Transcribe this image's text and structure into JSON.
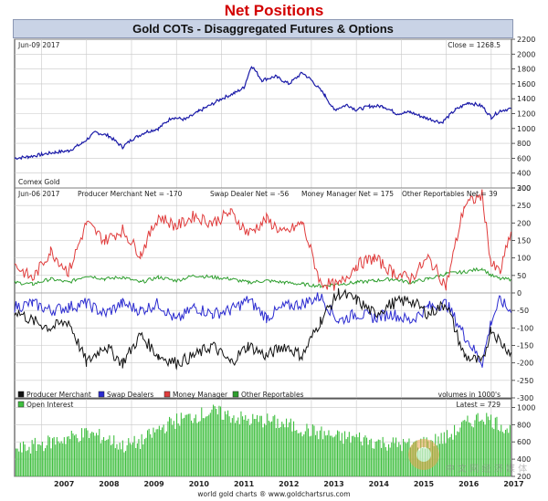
{
  "header": {
    "title": "Net Positions",
    "subtitle": "Gold COTs - Disaggregated Futures & Options"
  },
  "footer": {
    "credit": "world gold charts ® www.goldchartsrus.com"
  },
  "watermark": {
    "text": "中 文 网  经 济 媒 体"
  },
  "colors": {
    "price": "#1a1aa8",
    "producer": "#111111",
    "swap": "#2b2bd0",
    "money_manager": "#e03c3c",
    "other": "#2e9e2e",
    "open_interest": "#3fbf3f",
    "grid": "#c8c8c8"
  },
  "chart_data": [
    {
      "type": "line",
      "panel": "price",
      "date_label": "Jun-09  2017",
      "latest_label": "Close = 1268.5",
      "series_label": "Comex Gold",
      "ylim": [
        200,
        2200
      ],
      "yticks": [
        200,
        400,
        600,
        800,
        1000,
        1200,
        1400,
        1600,
        1800,
        2000,
        2200
      ],
      "grid": true,
      "series": [
        {
          "name": "Comex Gold",
          "color_key": "price",
          "x": [
            2006.4,
            2006.7,
            2007.0,
            2007.3,
            2007.6,
            2007.9,
            2008.2,
            2008.5,
            2008.8,
            2009.0,
            2009.3,
            2009.6,
            2009.9,
            2010.2,
            2010.5,
            2010.8,
            2011.0,
            2011.3,
            2011.5,
            2011.67,
            2011.9,
            2012.2,
            2012.5,
            2012.8,
            2013.0,
            2013.3,
            2013.5,
            2013.8,
            2014.0,
            2014.3,
            2014.6,
            2014.9,
            2015.2,
            2015.5,
            2015.9,
            2016.2,
            2016.5,
            2016.8,
            2017.0,
            2017.2,
            2017.44
          ],
          "y": [
            600,
            620,
            650,
            680,
            700,
            800,
            950,
            900,
            750,
            850,
            950,
            1000,
            1150,
            1120,
            1230,
            1330,
            1400,
            1480,
            1550,
            1850,
            1650,
            1700,
            1600,
            1750,
            1650,
            1450,
            1250,
            1320,
            1250,
            1300,
            1300,
            1200,
            1220,
            1150,
            1080,
            1250,
            1350,
            1300,
            1150,
            1240,
            1268
          ]
        }
      ]
    },
    {
      "type": "line",
      "panel": "net-positions",
      "date_label": "Jun-06  2017",
      "labels": {
        "producer": "Producer Merchant Net = -170",
        "swap": "Swap Dealer Net = -56",
        "money": "Money Manager Net = 175",
        "other": "Other Reportables Net = 39"
      },
      "legend": [
        "Producer Merchant",
        "Swap Dealers",
        "Money Manager",
        "Other Reportables"
      ],
      "units_label": "volumes in 1000's",
      "ylim": [
        -300,
        300
      ],
      "yticks": [
        -300,
        -250,
        -200,
        -150,
        -100,
        -50,
        0,
        50,
        100,
        150,
        200,
        250,
        300
      ],
      "grid": true,
      "series": [
        {
          "name": "Producer Merchant",
          "color_key": "producer",
          "x": [
            2006.4,
            2006.8,
            2007.2,
            2007.6,
            2008.0,
            2008.4,
            2008.8,
            2009.2,
            2009.6,
            2010.0,
            2010.4,
            2010.8,
            2011.2,
            2011.6,
            2012.0,
            2012.4,
            2012.8,
            2013.2,
            2013.6,
            2014.0,
            2014.4,
            2014.8,
            2015.2,
            2015.6,
            2016.0,
            2016.4,
            2016.8,
            2017.0,
            2017.2,
            2017.44
          ],
          "y": [
            -50,
            -80,
            -100,
            -80,
            -200,
            -150,
            -200,
            -120,
            -180,
            -200,
            -180,
            -150,
            -200,
            -150,
            -180,
            -150,
            -180,
            -80,
            0,
            -20,
            -60,
            -30,
            -20,
            -60,
            -30,
            -180,
            -200,
            -100,
            -140,
            -170
          ]
        },
        {
          "name": "Swap Dealers",
          "color_key": "swap",
          "x": [
            2006.4,
            2006.8,
            2007.2,
            2007.6,
            2008.0,
            2008.4,
            2008.8,
            2009.2,
            2009.6,
            2010.0,
            2010.4,
            2010.8,
            2011.2,
            2011.6,
            2012.0,
            2012.4,
            2012.8,
            2013.2,
            2013.6,
            2014.0,
            2014.4,
            2014.8,
            2015.2,
            2015.6,
            2016.0,
            2016.4,
            2016.8,
            2017.0,
            2017.2,
            2017.44
          ],
          "y": [
            -40,
            -30,
            -50,
            -40,
            -30,
            -60,
            -30,
            -50,
            -30,
            -80,
            -40,
            -60,
            -50,
            -20,
            -70,
            -40,
            -30,
            -10,
            -80,
            -60,
            -70,
            -60,
            -80,
            -40,
            -30,
            -120,
            -200,
            -80,
            -20,
            -56
          ]
        },
        {
          "name": "Money Manager",
          "color_key": "money_manager",
          "x": [
            2006.4,
            2006.8,
            2007.2,
            2007.6,
            2008.0,
            2008.4,
            2008.8,
            2009.2,
            2009.6,
            2010.0,
            2010.4,
            2010.8,
            2011.2,
            2011.6,
            2012.0,
            2012.4,
            2012.8,
            2013.2,
            2013.6,
            2014.0,
            2014.4,
            2014.8,
            2015.2,
            2015.6,
            2016.0,
            2016.4,
            2016.8,
            2017.0,
            2017.2,
            2017.44
          ],
          "y": [
            80,
            40,
            120,
            60,
            200,
            150,
            180,
            110,
            220,
            190,
            220,
            200,
            230,
            170,
            210,
            170,
            200,
            30,
            20,
            80,
            100,
            60,
            40,
            100,
            20,
            250,
            280,
            80,
            60,
            175
          ]
        },
        {
          "name": "Other Reportables",
          "color_key": "other",
          "x": [
            2006.4,
            2006.8,
            2007.2,
            2007.6,
            2008.0,
            2008.4,
            2008.8,
            2009.2,
            2009.6,
            2010.0,
            2010.4,
            2010.8,
            2011.2,
            2011.6,
            2012.0,
            2012.4,
            2012.8,
            2013.2,
            2013.6,
            2014.0,
            2014.4,
            2014.8,
            2015.2,
            2015.6,
            2016.0,
            2016.4,
            2016.8,
            2017.0,
            2017.2,
            2017.44
          ],
          "y": [
            30,
            25,
            40,
            30,
            50,
            40,
            45,
            30,
            45,
            35,
            50,
            45,
            40,
            30,
            35,
            30,
            25,
            20,
            25,
            30,
            35,
            40,
            30,
            40,
            55,
            60,
            70,
            50,
            40,
            39
          ]
        }
      ]
    },
    {
      "type": "bar",
      "panel": "open-interest",
      "legend": [
        "Open Interest"
      ],
      "latest_label": "Latest = 729",
      "ylim": [
        200,
        1100
      ],
      "yticks": [
        200,
        400,
        600,
        800,
        1000
      ],
      "grid": true,
      "x": [
        2006.4,
        2006.8,
        2007.2,
        2007.6,
        2008.0,
        2008.4,
        2008.8,
        2009.2,
        2009.6,
        2010.0,
        2010.4,
        2010.8,
        2011.2,
        2011.6,
        2012.0,
        2012.4,
        2012.8,
        2013.2,
        2013.6,
        2014.0,
        2014.4,
        2014.8,
        2015.2,
        2015.6,
        2016.0,
        2016.4,
        2016.8,
        2017.0,
        2017.2,
        2017.44
      ],
      "values": [
        500,
        550,
        600,
        650,
        700,
        650,
        550,
        600,
        750,
        850,
        900,
        950,
        900,
        850,
        850,
        800,
        750,
        700,
        650,
        650,
        600,
        580,
        560,
        600,
        650,
        800,
        900,
        850,
        800,
        729
      ]
    }
  ],
  "x_axis": {
    "labels": [
      "2007",
      "2008",
      "2009",
      "2010",
      "2011",
      "2012",
      "2013",
      "2014",
      "2015",
      "2016",
      "2017"
    ],
    "range": [
      2006.4,
      2017.45
    ]
  }
}
